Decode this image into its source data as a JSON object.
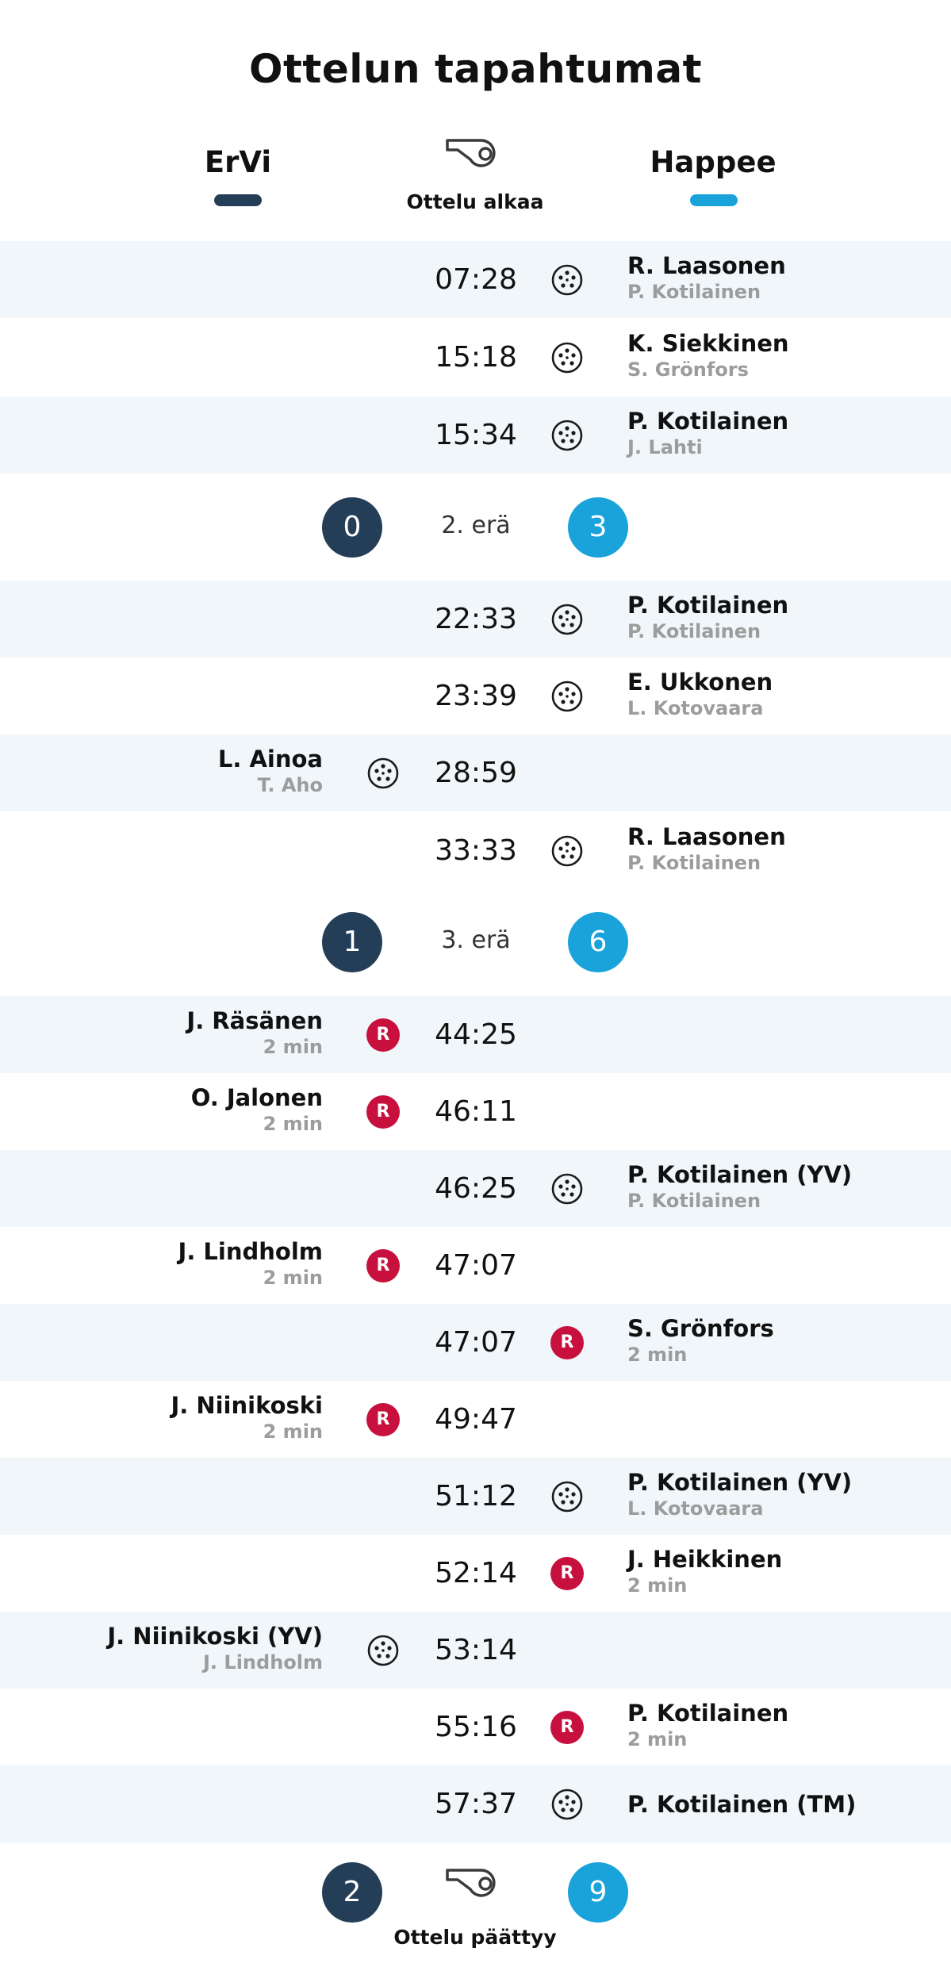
{
  "title": "Ottelun tapahtumat",
  "teams": {
    "home": "ErVi",
    "away": "Happee"
  },
  "colors": {
    "home": "#243e57",
    "away": "#19a3da",
    "penalty": "#c8103e",
    "shade": "#f0f6f9"
  },
  "start_label": "Ottelu alkaa",
  "end_label": "Ottelu päättyy",
  "icons": {
    "goal": "floorball-icon",
    "penalty": "penalty-r-icon",
    "whistle": "whistle-icon"
  },
  "penalty_letter": "R",
  "rows": [
    {
      "time": "07:28",
      "side": "away",
      "type": "goal",
      "name": "R. Laasonen",
      "sub": "P. Kotilainen"
    },
    {
      "time": "15:18",
      "side": "away",
      "type": "goal",
      "name": "K. Siekkinen",
      "sub": "S. Grönfors"
    },
    {
      "time": "15:34",
      "side": "away",
      "type": "goal",
      "name": "P. Kotilainen",
      "sub": "J. Lahti"
    },
    {
      "time": "22:33",
      "side": "away",
      "type": "goal",
      "name": "P. Kotilainen",
      "sub": "P. Kotilainen"
    },
    {
      "time": "23:39",
      "side": "away",
      "type": "goal",
      "name": "E. Ukkonen",
      "sub": "L. Kotovaara"
    },
    {
      "time": "28:59",
      "side": "home",
      "type": "goal",
      "name": "L. Ainoa",
      "sub": "T. Aho"
    },
    {
      "time": "33:33",
      "side": "away",
      "type": "goal",
      "name": "R. Laasonen",
      "sub": "P. Kotilainen"
    },
    {
      "time": "44:25",
      "side": "home",
      "type": "penalty",
      "name": "J. Räsänen",
      "sub": "2 min"
    },
    {
      "time": "46:11",
      "side": "home",
      "type": "penalty",
      "name": "O. Jalonen",
      "sub": "2 min"
    },
    {
      "time": "46:25",
      "side": "away",
      "type": "goal",
      "name": "P. Kotilainen (YV)",
      "sub": "P. Kotilainen"
    },
    {
      "time": "47:07",
      "side": "home",
      "type": "penalty",
      "name": "J. Lindholm",
      "sub": "2 min"
    },
    {
      "time": "47:07",
      "side": "away",
      "type": "penalty",
      "name": "S. Grönfors",
      "sub": "2 min"
    },
    {
      "time": "49:47",
      "side": "home",
      "type": "penalty",
      "name": "J. Niinikoski",
      "sub": "2 min"
    },
    {
      "time": "51:12",
      "side": "away",
      "type": "goal",
      "name": "P. Kotilainen (YV)",
      "sub": "L. Kotovaara"
    },
    {
      "time": "52:14",
      "side": "away",
      "type": "penalty",
      "name": "J. Heikkinen",
      "sub": "2 min"
    },
    {
      "time": "53:14",
      "side": "home",
      "type": "goal",
      "name": "J. Niinikoski (YV)",
      "sub": "J. Lindholm"
    },
    {
      "time": "55:16",
      "side": "away",
      "type": "penalty",
      "name": "P. Kotilainen",
      "sub": "2 min"
    },
    {
      "time": "57:37",
      "side": "away",
      "type": "goal",
      "name": "P. Kotilainen (TM)",
      "sub": ""
    }
  ],
  "periods": [
    {
      "label": "2. erä",
      "home": "0",
      "away": "3"
    },
    {
      "label": "3. erä",
      "home": "1",
      "away": "6"
    },
    {
      "label": "",
      "home": "2",
      "away": "9"
    }
  ]
}
